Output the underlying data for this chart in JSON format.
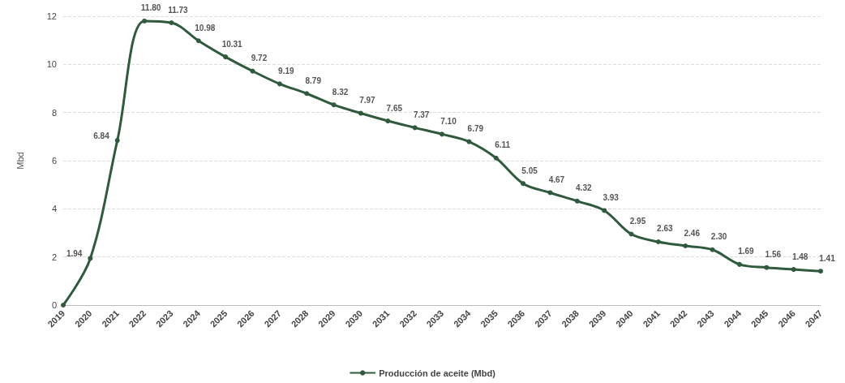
{
  "chart_data": {
    "type": "line",
    "ylabel": "Mbd",
    "categories": [
      "2019",
      "2020",
      "2021",
      "2022",
      "2023",
      "2024",
      "2025",
      "2026",
      "2027",
      "2028",
      "2029",
      "2030",
      "2031",
      "2032",
      "2033",
      "2034",
      "2035",
      "2036",
      "2037",
      "2038",
      "2039",
      "2040",
      "2041",
      "2042",
      "2043",
      "2044",
      "2045",
      "2046",
      "2047"
    ],
    "series": [
      {
        "name": "Producción de aceite (Mbd)",
        "color": "#2f5a3c",
        "values": [
          0,
          1.94,
          6.84,
          11.8,
          11.73,
          10.98,
          10.31,
          9.72,
          9.19,
          8.79,
          8.32,
          7.97,
          7.65,
          7.37,
          7.1,
          6.79,
          6.11,
          5.05,
          4.67,
          4.32,
          3.93,
          2.95,
          2.63,
          2.46,
          2.3,
          1.69,
          1.56,
          1.48,
          1.41
        ],
        "value_labels": [
          null,
          "1.94",
          "6.84",
          "11.80",
          "11.73",
          "10.98",
          "10.31",
          "9.72",
          "9.19",
          "8.79",
          "8.32",
          "7.97",
          "7.65",
          "7.37",
          "7.10",
          "6.79",
          "6.11",
          "5.05",
          "4.67",
          "4.32",
          "3.93",
          "2.95",
          "2.63",
          "2.46",
          "2.30",
          "1.69",
          "1.56",
          "1.48",
          "1.41"
        ]
      }
    ],
    "ylim": [
      0,
      12
    ],
    "yticks": [
      0,
      2,
      4,
      6,
      8,
      10,
      12
    ],
    "grid": "y",
    "legend": "bottom",
    "marker": "circle",
    "line_style": "solid"
  }
}
